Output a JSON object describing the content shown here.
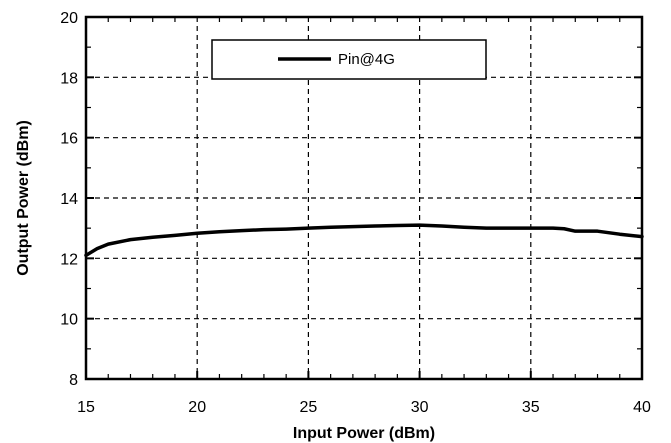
{
  "chart_data": {
    "type": "line",
    "title": "",
    "xlabel": "Input Power (dBm)",
    "ylabel": "Output Power (dBm)",
    "xlim": [
      15,
      40
    ],
    "ylim": [
      8,
      20
    ],
    "x_ticks": [
      15,
      20,
      25,
      30,
      35,
      40
    ],
    "y_ticks": [
      8,
      10,
      12,
      14,
      16,
      18,
      20
    ],
    "x_tick_labels": [
      "15",
      "20",
      "25",
      "30",
      "35",
      "40"
    ],
    "y_tick_labels": [
      "8",
      "10",
      "12",
      "14",
      "16",
      "18",
      "20"
    ],
    "grid": true,
    "legend_position": "top-center",
    "series": [
      {
        "name": "Pin@4G",
        "color": "#000000",
        "x": [
          15,
          15.5,
          16,
          17,
          18,
          19,
          20,
          21,
          22,
          23,
          24,
          25,
          26,
          27,
          28,
          29,
          30,
          31,
          32,
          33,
          34,
          35,
          36,
          36.5,
          37,
          38,
          39,
          40
        ],
        "y": [
          12.1,
          12.32,
          12.47,
          12.62,
          12.7,
          12.76,
          12.83,
          12.88,
          12.92,
          12.95,
          12.97,
          13.0,
          13.03,
          13.05,
          13.07,
          13.09,
          13.1,
          13.07,
          13.03,
          13.0,
          13.0,
          13.0,
          13.0,
          12.98,
          12.9,
          12.9,
          12.8,
          12.72
        ]
      }
    ]
  }
}
